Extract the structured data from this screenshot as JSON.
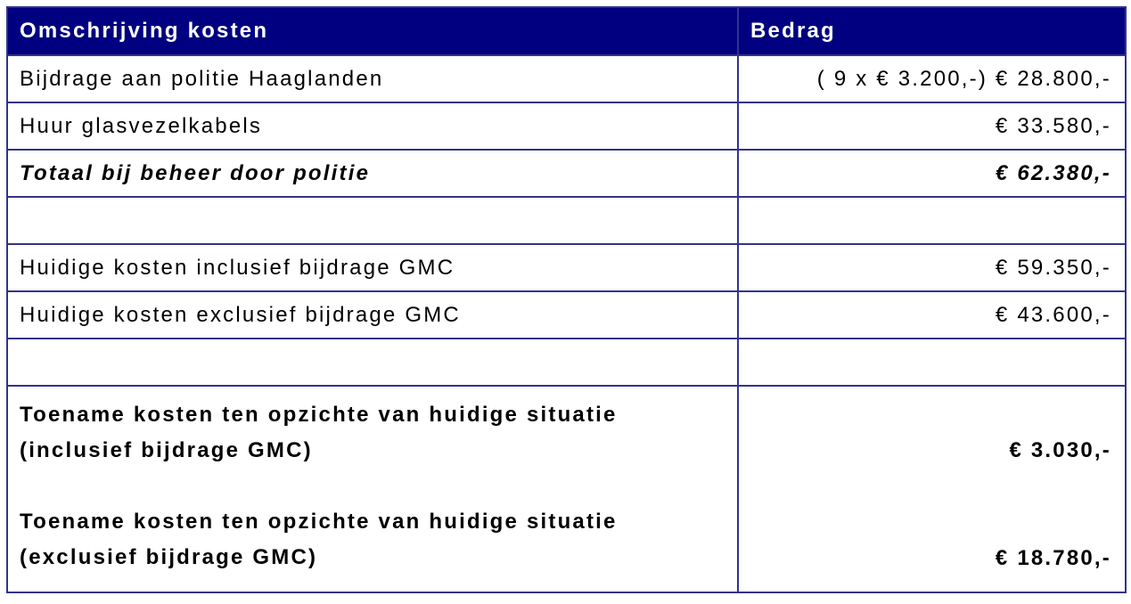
{
  "table": {
    "headers": [
      "Omschrijving kosten",
      "Bedrag"
    ],
    "rows": [
      {
        "label": "Bijdrage aan politie Haaglanden",
        "amount": "( 9 x € 3.200,-) € 28.800,-"
      },
      {
        "label": "Huur glasvezelkabels",
        "amount": "€ 33.580,-"
      },
      {
        "label": "Totaal bij beheer door politie",
        "amount": "€ 62.380,-"
      },
      {
        "label": "",
        "amount": ""
      },
      {
        "label": "Huidige kosten inclusief bijdrage GMC",
        "amount": "€ 59.350,-"
      },
      {
        "label": "Huidige kosten exclusief bijdrage GMC",
        "amount": "€ 43.600,-"
      },
      {
        "label": "",
        "amount": ""
      }
    ],
    "summary": [
      {
        "line1": "Toename kosten ten opzichte van huidige situatie",
        "line2": "(inclusief bijdrage GMC)",
        "amount": "€ 3.030,-"
      },
      {
        "line1": "Toename kosten ten opzichte van huidige situatie",
        "line2": "(exclusief bijdrage GMC)",
        "amount": "€ 18.780,-"
      }
    ]
  },
  "colors": {
    "header_bg": "#000080",
    "border": "#33338a"
  }
}
